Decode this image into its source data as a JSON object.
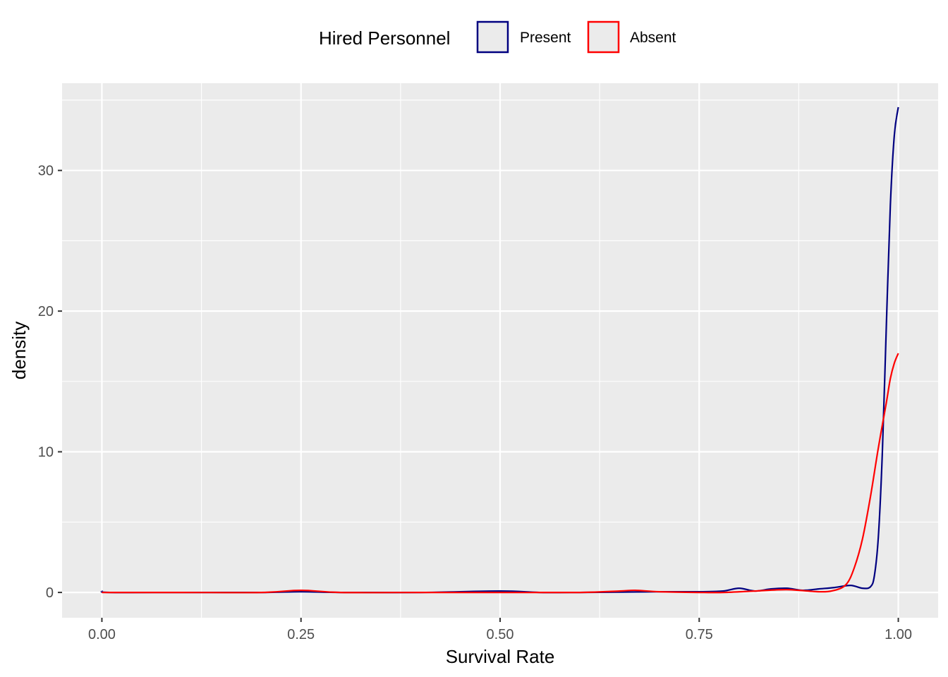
{
  "chart_data": {
    "type": "line",
    "title": "",
    "xlabel": "Survival Rate",
    "ylabel": "density",
    "xlim": [
      -0.05,
      1.05
    ],
    "ylim": [
      -1.8,
      36.2
    ],
    "x_ticks": [
      0,
      0.25,
      0.5,
      0.75,
      1.0
    ],
    "x_tick_labels": [
      "0.00",
      "0.25",
      "0.50",
      "0.75",
      "1.00"
    ],
    "y_ticks": [
      0,
      10,
      20,
      30
    ],
    "y_tick_labels": [
      "0",
      "10",
      "20",
      "30"
    ],
    "grid": true,
    "legend": {
      "title": "Hired Personnel",
      "position": "top",
      "entries": [
        "Present",
        "Absent"
      ]
    },
    "series": [
      {
        "name": "Present",
        "color": "#000080",
        "x": [
          0,
          0.01,
          0.1,
          0.2,
          0.25,
          0.3,
          0.4,
          0.5,
          0.55,
          0.6,
          0.7,
          0.75,
          0.78,
          0.8,
          0.82,
          0.84,
          0.86,
          0.88,
          0.9,
          0.92,
          0.94,
          0.955,
          0.965,
          0.97,
          0.975,
          0.98,
          0.985,
          0.99,
          0.995,
          1.0
        ],
        "y": [
          0.1,
          0,
          0,
          0,
          0.05,
          0,
          0,
          0.1,
          0,
          0,
          0.05,
          0.05,
          0.1,
          0.3,
          0.1,
          0.25,
          0.3,
          0.15,
          0.25,
          0.35,
          0.5,
          0.3,
          0.4,
          1.2,
          4,
          10,
          19,
          27.5,
          32.5,
          34.5
        ]
      },
      {
        "name": "Absent",
        "color": "#ff0000",
        "x": [
          0,
          0.1,
          0.2,
          0.25,
          0.3,
          0.4,
          0.5,
          0.6,
          0.65,
          0.67,
          0.7,
          0.75,
          0.78,
          0.82,
          0.86,
          0.9,
          0.92,
          0.935,
          0.945,
          0.955,
          0.965,
          0.975,
          0.985,
          0.99,
          0.995,
          1.0
        ],
        "y": [
          0,
          0,
          0,
          0.15,
          0,
          0,
          0,
          0,
          0.1,
          0.15,
          0.05,
          0,
          0,
          0.1,
          0.2,
          0.05,
          0.15,
          0.6,
          1.8,
          3.8,
          6.8,
          10.3,
          13.5,
          15.2,
          16.3,
          17
        ]
      }
    ]
  }
}
